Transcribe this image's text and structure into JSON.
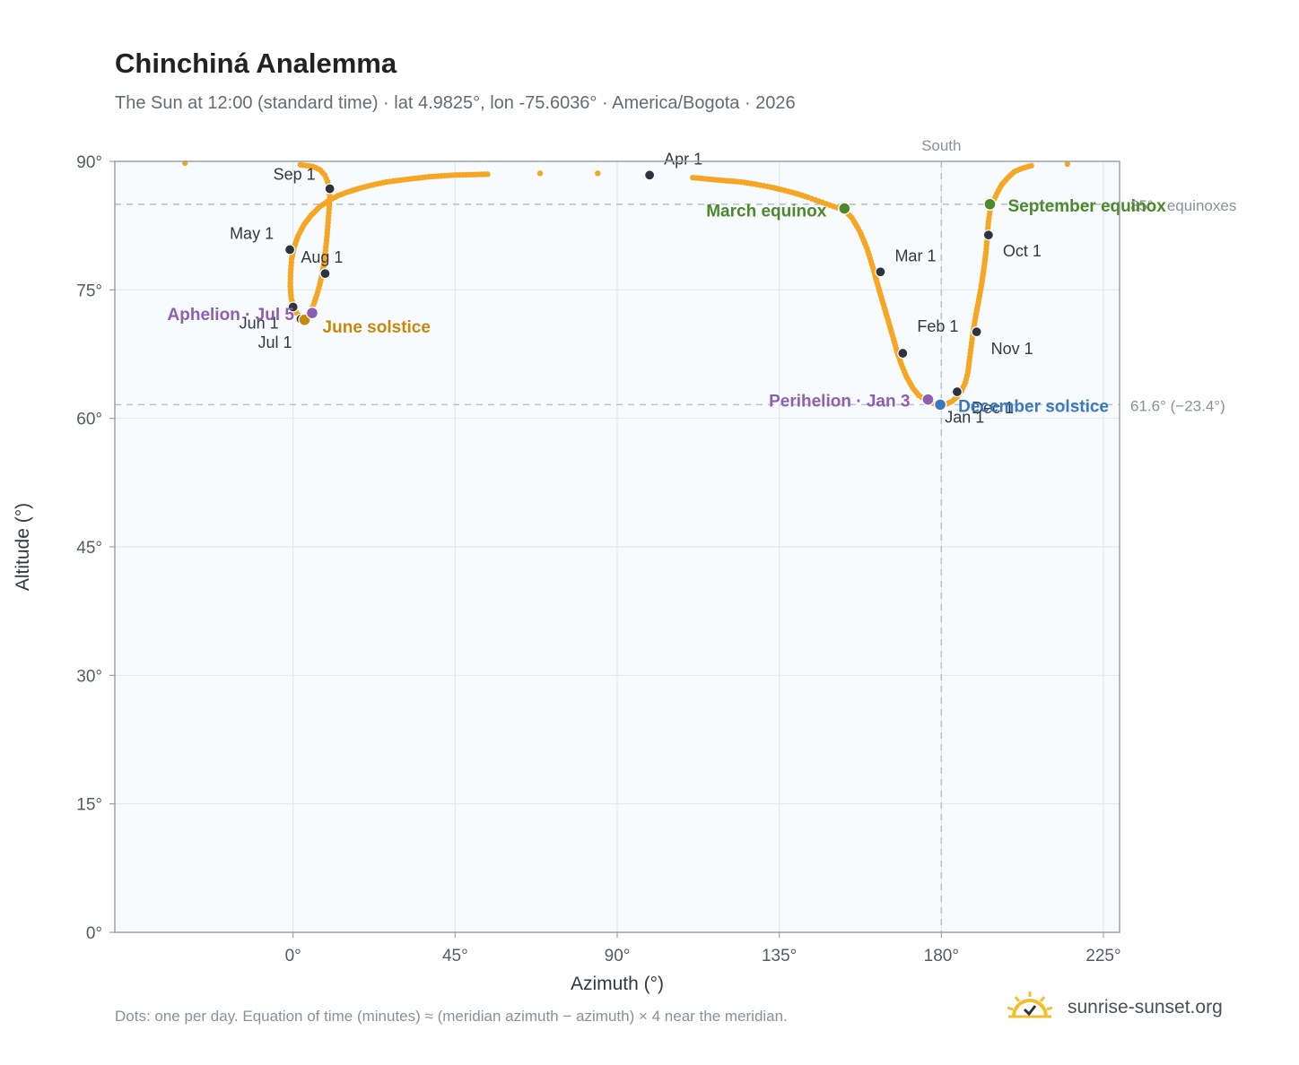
{
  "title": "Chinchiná Analemma",
  "subtitle": "The Sun at 12:00 (standard time) · lat 4.9825°, lon -75.6036° · America/Bogota · 2026",
  "footnote": "Dots: one per day. Equation of time (minutes) ≈ (meridian azimuth − azimuth) × 4 near the meridian.",
  "brand": {
    "text": "sunrise-sunset.org",
    "icon": "sun-logo-icon"
  },
  "colors": {
    "curve": "#f5a623",
    "month_marker": "#2d3340",
    "equinox": "#4a8a2a",
    "june_solstice": "#c8880a",
    "december_solstice": "#3a78c0",
    "apsis": "#8e5fb0",
    "plot_bg": "#f8fbfe",
    "grid": "#e3e8ee",
    "axis": "#9aa3ad",
    "reference_line": "#b9c2ca"
  },
  "chart_data": {
    "type": "scatter",
    "title": "Chinchiná Analemma",
    "subtitle": "The Sun at 12:00 (standard time) · lat 4.9825°, lon -75.6036° · America/Bogota · 2026",
    "xlabel": "Azimuth (°)",
    "ylabel": "Altitude (°)",
    "xlim": [
      -49.5,
      229.5
    ],
    "ylim": [
      0,
      90
    ],
    "xticks": [
      0,
      45,
      90,
      135,
      180,
      225
    ],
    "xtick_labels": [
      "0°",
      "45°",
      "90°",
      "135°",
      "180°",
      "225°"
    ],
    "yticks": [
      0,
      15,
      30,
      45,
      60,
      75,
      90
    ],
    "ytick_labels": [
      "0°",
      "15°",
      "30°",
      "45°",
      "60°",
      "75°",
      "90°"
    ],
    "grid": true,
    "south_line": {
      "azimuth": 180,
      "label": "South"
    },
    "reference_lines": [
      {
        "altitude": 85.0,
        "label": "85° · equinoxes"
      },
      {
        "altitude": 61.6,
        "label": "61.6° (−23.4°)"
      }
    ],
    "series": [
      {
        "type": "daily_dots",
        "points": [
          [
            180.0,
            61.6
          ],
          [
            181.6,
            61.7
          ],
          [
            183.0,
            62.0
          ],
          [
            184.4,
            62.5
          ],
          [
            185.6,
            63.2
          ],
          [
            186.7,
            64.2
          ],
          [
            187.4,
            65.4
          ],
          [
            187.8,
            66.8
          ],
          [
            188.3,
            68.4
          ],
          [
            188.8,
            70.0
          ],
          [
            189.5,
            71.8
          ],
          [
            190.3,
            73.6
          ],
          [
            191.1,
            75.4
          ],
          [
            191.8,
            77.4
          ],
          [
            192.4,
            79.4
          ],
          [
            192.8,
            81.4
          ],
          [
            193.1,
            83.0
          ],
          [
            193.5,
            84.2
          ],
          [
            194.3,
            85.2
          ],
          [
            195.5,
            86.3
          ],
          [
            196.8,
            87.3
          ],
          [
            198.5,
            88.1
          ],
          [
            200.3,
            88.8
          ],
          [
            202.5,
            89.2
          ],
          [
            205.0,
            89.5
          ],
          [
            215.0,
            89.7
          ],
          [
            -30.0,
            89.8
          ],
          [
            2.0,
            89.6
          ],
          [
            5.5,
            89.4
          ],
          [
            7.5,
            89.0
          ],
          [
            8.8,
            88.4
          ],
          [
            9.6,
            87.6
          ],
          [
            10.0,
            86.8
          ],
          [
            10.2,
            85.8
          ],
          [
            10.0,
            84.4
          ],
          [
            9.7,
            82.8
          ],
          [
            9.4,
            81.2
          ],
          [
            9.0,
            79.6
          ],
          [
            8.6,
            78.2
          ],
          [
            8.1,
            76.9
          ],
          [
            7.4,
            75.6
          ],
          [
            6.6,
            74.4
          ],
          [
            5.7,
            73.3
          ],
          [
            4.9,
            72.5
          ],
          [
            4.1,
            71.9
          ],
          [
            3.2,
            71.6
          ],
          [
            2.1,
            71.8
          ],
          [
            1.0,
            72.3
          ],
          [
            0.1,
            73.0
          ],
          [
            -0.5,
            74.0
          ],
          [
            -0.8,
            75.4
          ],
          [
            -0.7,
            77.0
          ],
          [
            -0.4,
            78.6
          ],
          [
            0.3,
            80.0
          ],
          [
            1.4,
            81.3
          ],
          [
            3.0,
            82.6
          ],
          [
            5.0,
            83.7
          ],
          [
            7.4,
            84.7
          ],
          [
            10.2,
            85.5
          ],
          [
            12.5,
            86.0
          ],
          [
            15.0,
            86.4
          ],
          [
            18.0,
            86.8
          ],
          [
            21.5,
            87.2
          ],
          [
            26.0,
            87.6
          ],
          [
            31.5,
            87.9
          ],
          [
            37.7,
            88.2
          ],
          [
            44.6,
            88.4
          ],
          [
            54.0,
            88.5
          ],
          [
            68.6,
            88.6
          ],
          [
            84.6,
            88.6
          ],
          [
            99.0,
            88.4
          ],
          [
            111.0,
            88.1
          ],
          [
            118.6,
            87.8
          ],
          [
            124.4,
            87.6
          ],
          [
            128.8,
            87.3
          ],
          [
            132.6,
            87.0
          ],
          [
            135.6,
            86.7
          ],
          [
            138.4,
            86.4
          ],
          [
            140.8,
            86.1
          ],
          [
            143.0,
            85.8
          ],
          [
            145.0,
            85.5
          ],
          [
            147.0,
            85.2
          ],
          [
            149.0,
            84.9
          ],
          [
            151.0,
            84.6
          ],
          [
            153.0,
            84.3
          ],
          [
            155.2,
            83.4
          ],
          [
            157.4,
            81.8
          ],
          [
            159.4,
            79.8
          ],
          [
            161.0,
            77.6
          ],
          [
            162.6,
            75.2
          ],
          [
            164.0,
            73.2
          ],
          [
            165.4,
            71.2
          ],
          [
            166.5,
            69.6
          ],
          [
            167.7,
            67.8
          ],
          [
            169.0,
            66.2
          ],
          [
            170.4,
            64.8
          ],
          [
            172.0,
            63.6
          ],
          [
            173.7,
            62.7
          ],
          [
            175.5,
            62.2
          ],
          [
            177.3,
            61.8
          ],
          [
            179.0,
            61.6
          ]
        ]
      }
    ],
    "month_markers": [
      {
        "label": "Jan 1",
        "az": 180.0,
        "alt": 61.6
      },
      {
        "label": "Feb 1",
        "az": 169.3,
        "alt": 67.6
      },
      {
        "label": "Mar 1",
        "az": 163.1,
        "alt": 77.1
      },
      {
        "label": "Apr 1",
        "az": 99.0,
        "alt": 88.4
      },
      {
        "label": "May 1",
        "az": -0.9,
        "alt": 79.7
      },
      {
        "label": "Jun 1",
        "az": 0.0,
        "alt": 73.0
      },
      {
        "label": "Jul 1",
        "az": 2.2,
        "alt": 71.6
      },
      {
        "label": "Aug 1",
        "az": 8.9,
        "alt": 76.9
      },
      {
        "label": "Sep 1",
        "az": 10.2,
        "alt": 86.8
      },
      {
        "label": "Oct 1",
        "az": 193.1,
        "alt": 81.4
      },
      {
        "label": "Nov 1",
        "az": 189.8,
        "alt": 70.1
      },
      {
        "label": "Dec 1",
        "az": 184.4,
        "alt": 63.1
      }
    ],
    "events": [
      {
        "label": "March equinox",
        "az": 153.1,
        "alt": 84.5,
        "color": "#4a8a2a"
      },
      {
        "label": "June solstice",
        "az": 3.2,
        "alt": 71.5,
        "color": "#c8880a"
      },
      {
        "label": "September equinox",
        "az": 193.5,
        "alt": 85.0,
        "color": "#4a8a2a"
      },
      {
        "label": "December solstice",
        "az": 179.7,
        "alt": 61.6,
        "color": "#3a78c0"
      },
      {
        "label": "Perihelion · Jan 3",
        "az": 176.3,
        "alt": 62.2,
        "color": "#8e5fb0"
      },
      {
        "label": "Aphelion · Jul 5",
        "az": 5.3,
        "alt": 72.3,
        "color": "#8e5fb0"
      }
    ]
  }
}
